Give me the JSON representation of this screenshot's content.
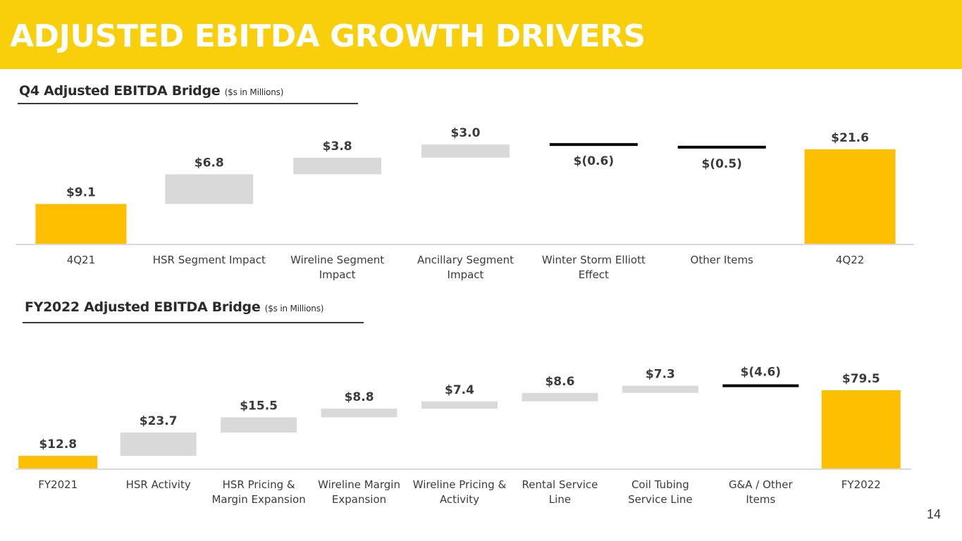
{
  "header": {
    "title": "ADJUSTED EBITDA GROWTH DRIVERS"
  },
  "page_number": "14",
  "colors": {
    "total": "#fdbf00",
    "increase": "#d9d9d9",
    "decrease": "#000000",
    "header_bg": "#f9cf0b"
  },
  "chart_data": [
    {
      "type": "bar",
      "subtype": "waterfall",
      "title": "Q4 Adjusted EBITDA Bridge",
      "units": "($s in Millions)",
      "ylim": [
        0,
        22
      ],
      "categories": [
        [
          "4Q21"
        ],
        [
          "HSR Segment Impact"
        ],
        [
          "Wireline Segment",
          "Impact"
        ],
        [
          "Ancillary Segment",
          "Impact"
        ],
        [
          "Winter Storm Elliott",
          "Effect"
        ],
        [
          "Other Items"
        ],
        [
          "4Q22"
        ]
      ],
      "values": [
        9.1,
        6.8,
        3.8,
        3.0,
        -0.6,
        -0.5,
        21.6
      ],
      "kinds": [
        "total",
        "delta",
        "delta",
        "delta",
        "delta",
        "delta",
        "total"
      ],
      "data_labels": [
        "$9.1",
        "$6.8",
        "$3.8",
        "$3.0",
        "$(0.6)",
        "$(0.5)",
        "$21.6"
      ]
    },
    {
      "type": "bar",
      "subtype": "waterfall",
      "title": "FY2022 Adjusted EBITDA Bridge",
      "units": "($s in Millions)",
      "ylim": [
        0,
        80
      ],
      "categories": [
        [
          "FY2021"
        ],
        [
          "HSR Activity"
        ],
        [
          "HSR Pricing &",
          "Margin Expansion"
        ],
        [
          "Wireline Margin",
          "Expansion"
        ],
        [
          "Wireline Pricing &",
          "Activity"
        ],
        [
          "Rental Service",
          "Line"
        ],
        [
          "Coil Tubing",
          "Service Line"
        ],
        [
          "G&A / Other",
          "Items"
        ],
        [
          "FY2022"
        ]
      ],
      "values": [
        12.8,
        23.7,
        15.5,
        8.8,
        7.4,
        8.6,
        7.3,
        -4.6,
        79.5
      ],
      "kinds": [
        "total",
        "delta",
        "delta",
        "delta",
        "delta",
        "delta",
        "delta",
        "delta",
        "total"
      ],
      "data_labels": [
        "$12.8",
        "$23.7",
        "$15.5",
        "$8.8",
        "$7.4",
        "$8.6",
        "$7.3",
        "$(4.6)",
        "$79.5"
      ]
    }
  ]
}
